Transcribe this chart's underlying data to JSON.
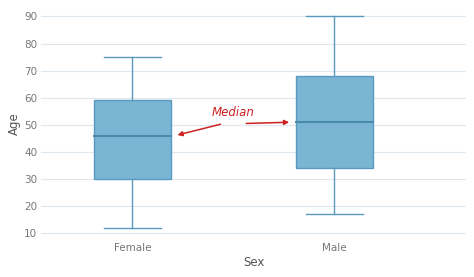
{
  "categories": [
    "Female",
    "Male"
  ],
  "female": {
    "whisker_min": 12,
    "q1": 30,
    "median": 46,
    "q3": 59,
    "whisker_max": 75
  },
  "male": {
    "whisker_min": 17,
    "q1": 34,
    "median": 51,
    "q3": 68,
    "whisker_max": 90
  },
  "box_color": "#7ab6d4",
  "box_edge_color": "#5a9abf",
  "median_color": "#4a8aad",
  "whisker_color": "#5a9abf",
  "cap_color": "#5a9abf",
  "annotation_text": "Median",
  "annotation_color": "#cc2222",
  "xlabel": "Sex",
  "ylabel": "Age",
  "ylim": [
    8,
    93
  ],
  "yticks": [
    10,
    20,
    30,
    40,
    50,
    60,
    70,
    80,
    90
  ],
  "grid_color": "#dde8f0",
  "background_color": "#ffffff",
  "box_width": 0.38,
  "linewidth": 1.0,
  "positions": [
    1,
    2
  ],
  "xlim": [
    0.55,
    2.65
  ]
}
